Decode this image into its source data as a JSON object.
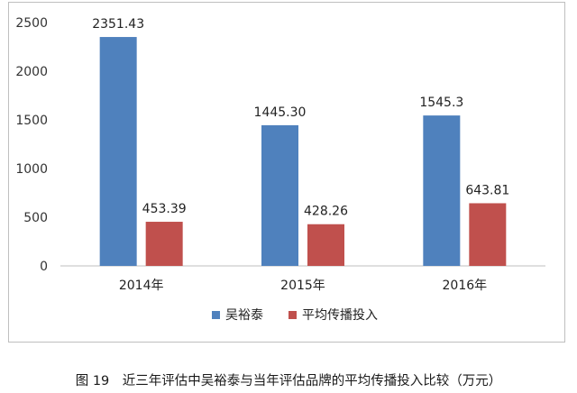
{
  "chart_data": {
    "type": "bar",
    "categories": [
      "2014年",
      "2015年",
      "2016年"
    ],
    "series": [
      {
        "name": "吴裕泰",
        "color": "#4f81bd",
        "values": [
          2351.43,
          1445.3,
          1545.3
        ],
        "labels": [
          "2351.43",
          "1445.30",
          "1545.3"
        ]
      },
      {
        "name": "平均传播投入",
        "color": "#c0504d",
        "values": [
          453.39,
          428.26,
          643.81
        ],
        "labels": [
          "453.39",
          "428.26",
          "643.81"
        ]
      }
    ],
    "y_ticks": [
      "0",
      "500",
      "1000",
      "1500",
      "2000",
      "2500"
    ],
    "ylim": [
      0,
      2500
    ],
    "grid": false,
    "legend_position": "bottom"
  },
  "caption": "图 19　近三年评估中吴裕泰与当年评估品牌的平均传播投入比较（万元）"
}
